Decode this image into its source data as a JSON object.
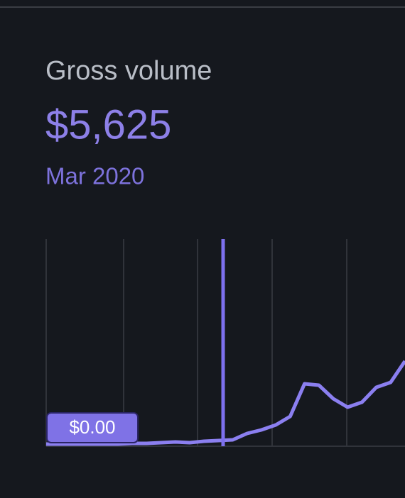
{
  "chart_data": {
    "type": "line",
    "title": "Gross volume",
    "value_label": "$5,625",
    "period": "Mar 2020",
    "tooltip": "$0.00",
    "color": "#8b7ff0",
    "values": [
      1,
      1,
      1,
      1,
      1,
      1,
      2,
      2,
      3,
      4,
      3,
      5,
      6,
      7,
      16,
      21,
      28,
      40,
      86,
      84,
      65,
      53,
      60,
      81,
      88,
      118
    ]
  }
}
